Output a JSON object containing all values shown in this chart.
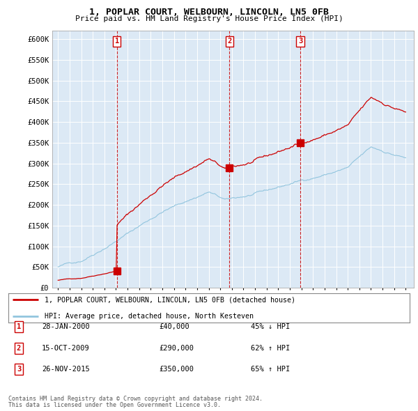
{
  "title1": "1, POPLAR COURT, WELBOURN, LINCOLN, LN5 0FB",
  "title2": "Price paid vs. HM Land Registry's House Price Index (HPI)",
  "ylabel_values": [
    "£0",
    "£50K",
    "£100K",
    "£150K",
    "£200K",
    "£250K",
    "£300K",
    "£350K",
    "£400K",
    "£450K",
    "£500K",
    "£550K",
    "£600K"
  ],
  "ytick_values": [
    0,
    50000,
    100000,
    150000,
    200000,
    250000,
    300000,
    350000,
    400000,
    450000,
    500000,
    550000,
    600000
  ],
  "hpi_color": "#92c5de",
  "price_color": "#cc0000",
  "vline_color": "#cc0000",
  "sale_dates": [
    2000.07,
    2009.79,
    2015.9
  ],
  "sale_prices": [
    40000,
    290000,
    350000
  ],
  "sale_labels": [
    "1",
    "2",
    "3"
  ],
  "legend_line1": "1, POPLAR COURT, WELBOURN, LINCOLN, LN5 0FB (detached house)",
  "legend_line2": "HPI: Average price, detached house, North Kesteven",
  "table_data": [
    {
      "num": "1",
      "date": "28-JAN-2000",
      "price": "£40,000",
      "hpi": "45% ↓ HPI"
    },
    {
      "num": "2",
      "date": "15-OCT-2009",
      "price": "£290,000",
      "hpi": "62% ↑ HPI"
    },
    {
      "num": "3",
      "date": "26-NOV-2015",
      "price": "£350,000",
      "hpi": "65% ↑ HPI"
    }
  ],
  "footnote1": "Contains HM Land Registry data © Crown copyright and database right 2024.",
  "footnote2": "This data is licensed under the Open Government Licence v3.0.",
  "xlim_left": 1994.5,
  "xlim_right": 2025.7,
  "ylim_top": 620000,
  "plot_bg_color": "#dce9f5"
}
